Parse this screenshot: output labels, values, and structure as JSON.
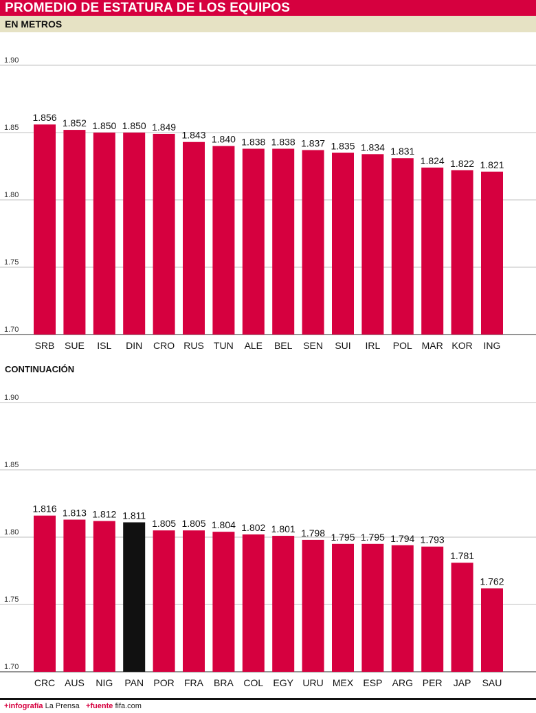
{
  "title": "PROMEDIO DE ESTATURA DE LOS EQUIPOS",
  "subtitle": "EN METROS",
  "continuation_label": "CONTINUACIÓN",
  "footer": {
    "infografia_label": "infografía",
    "infografia_value": "La Prensa",
    "fuente_label": "fuente",
    "fuente_value": "fifa.com"
  },
  "colors": {
    "bar": "#d6003f",
    "highlight": "#111111",
    "header": "#d6003f",
    "subheader": "#e6e2c4"
  },
  "chart_data": [
    {
      "type": "bar",
      "ylim": [
        1.7,
        1.9
      ],
      "yticks": [
        "1.70",
        "1.75",
        "1.80",
        "1.85",
        "1.90"
      ],
      "grid": true,
      "categories": [
        "SRB",
        "SUE",
        "ISL",
        "DIN",
        "CRO",
        "RUS",
        "TUN",
        "ALE",
        "BEL",
        "SEN",
        "SUI",
        "IRL",
        "POL",
        "MAR",
        "KOR",
        "ING"
      ],
      "values": [
        1.856,
        1.852,
        1.85,
        1.85,
        1.849,
        1.843,
        1.84,
        1.838,
        1.838,
        1.837,
        1.835,
        1.834,
        1.831,
        1.824,
        1.822,
        1.821
      ],
      "labels": [
        "1.856",
        "1.852",
        "1.850",
        "1.850",
        "1.849",
        "1.843",
        "1.840",
        "1.838",
        "1.838",
        "1.837",
        "1.835",
        "1.834",
        "1.831",
        "1.824",
        "1.822",
        "1.821"
      ]
    },
    {
      "type": "bar",
      "ylim": [
        1.7,
        1.9
      ],
      "yticks": [
        "1.70",
        "1.75",
        "1.80",
        "1.85",
        "1.90"
      ],
      "grid": true,
      "highlight": "PAN",
      "categories": [
        "CRC",
        "AUS",
        "NIG",
        "PAN",
        "POR",
        "FRA",
        "BRA",
        "COL",
        "EGY",
        "URU",
        "MEX",
        "ESP",
        "ARG",
        "PER",
        "JAP",
        "SAU"
      ],
      "values": [
        1.816,
        1.813,
        1.812,
        1.811,
        1.805,
        1.805,
        1.804,
        1.802,
        1.801,
        1.798,
        1.795,
        1.795,
        1.794,
        1.793,
        1.781,
        1.762
      ],
      "labels": [
        "1.816",
        "1.813",
        "1.812",
        "1.811",
        "1.805",
        "1.805",
        "1.804",
        "1.802",
        "1.801",
        "1.798",
        "1.795",
        "1.795",
        "1.794",
        "1.793",
        "1.781",
        "1.762"
      ]
    }
  ]
}
